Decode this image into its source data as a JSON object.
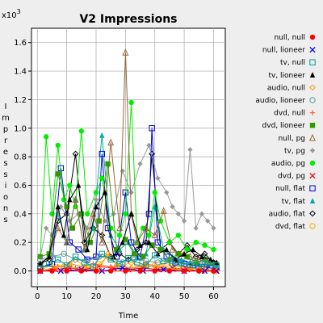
{
  "chart_data": {
    "type": "line",
    "title": "V2 Impressions",
    "xlabel": "Time",
    "ylabel": "Impressions",
    "y_multiplier": "x10",
    "y_multiplier_exp": "3",
    "xlim": [
      -2,
      64
    ],
    "ylim": [
      -0.11,
      1.7
    ],
    "x_ticks": [
      0,
      10,
      20,
      30,
      40,
      50,
      60
    ],
    "y_ticks": [
      0.0,
      0.2,
      0.4,
      0.6,
      0.8,
      1.0,
      1.2,
      1.4,
      1.6
    ],
    "y_tick_labels": [
      "0.0",
      "0.2",
      "0.4",
      "0.6",
      "0.8",
      "1.0",
      "1.2",
      "1.4",
      "1.6"
    ],
    "grid": true,
    "legend_position": "right",
    "series": [
      {
        "name": "null, null",
        "color": "#ff0000",
        "marker": "circle-filled",
        "x": [
          1,
          5,
          10,
          15,
          20,
          25,
          30,
          35,
          40,
          45,
          50,
          55,
          60
        ],
        "y": [
          0,
          0,
          0,
          0,
          0,
          0,
          0,
          0,
          0,
          0,
          0,
          0,
          0
        ]
      },
      {
        "name": "null, lioneer",
        "color": "#0000ff",
        "marker": "x",
        "x": [
          1,
          8,
          15,
          22,
          29,
          36,
          43,
          50,
          57,
          61
        ],
        "y": [
          0,
          0,
          0.01,
          0,
          0.02,
          0,
          0.01,
          0,
          0,
          0
        ]
      },
      {
        "name": "tv, null",
        "color": "#009999",
        "marker": "square",
        "x": [
          1,
          4,
          7,
          10,
          13,
          16,
          19,
          22,
          25,
          28,
          31,
          34,
          37,
          40,
          43,
          46,
          49,
          52,
          55,
          58,
          61
        ],
        "y": [
          0.02,
          0.05,
          0.08,
          0.04,
          0.1,
          0.06,
          0.03,
          0.12,
          0.08,
          0.05,
          0.09,
          0.06,
          0.04,
          0.11,
          0.07,
          0.05,
          0.06,
          0.04,
          0.03,
          0.05,
          0.04
        ]
      },
      {
        "name": "tv, lioneer",
        "color": "#000000",
        "marker": "triangle-filled",
        "x": [
          1,
          4,
          7,
          9,
          11,
          14,
          17,
          20,
          23,
          26,
          29,
          32,
          35,
          38,
          41,
          44,
          47,
          50,
          53,
          56,
          59,
          61
        ],
        "y": [
          0.05,
          0.1,
          0.45,
          0.25,
          0.5,
          0.6,
          0.15,
          0.45,
          0.55,
          0.1,
          0.2,
          0.4,
          0.18,
          0.2,
          0.12,
          0.15,
          0.08,
          0.12,
          0.15,
          0.1,
          0.08,
          0.06
        ]
      },
      {
        "name": "audio, null",
        "color": "#ff9900",
        "marker": "diamond",
        "x": [
          1,
          6,
          11,
          16,
          21,
          24,
          27,
          32,
          37,
          42,
          47,
          52,
          57,
          61
        ],
        "y": [
          0,
          0.02,
          0.05,
          0.03,
          0.01,
          0.12,
          0.04,
          0.02,
          0.05,
          0.03,
          0.01,
          0.02,
          0.01,
          0
        ]
      },
      {
        "name": "audio, lioneer",
        "color": "#669999",
        "marker": "circle",
        "x": [
          1,
          5,
          9,
          13,
          17,
          21,
          25,
          29,
          33,
          37,
          41,
          45,
          49,
          53,
          57,
          61
        ],
        "y": [
          0.08,
          0.1,
          0.12,
          0.08,
          0.07,
          0.1,
          0.09,
          0.06,
          0.08,
          0.07,
          0.06,
          0.08,
          0.05,
          0.07,
          0.06,
          0.05
        ]
      },
      {
        "name": "dvd, null",
        "color": "#ff6633",
        "marker": "plus",
        "x": [
          1,
          7,
          13,
          19,
          25,
          31,
          37,
          43,
          49,
          55,
          61
        ],
        "y": [
          0,
          0.03,
          0.02,
          0.05,
          0.03,
          0.01,
          0.04,
          0.02,
          0.01,
          0.02,
          0
        ]
      },
      {
        "name": "dvd, lioneer",
        "color": "#339900",
        "marker": "square-filled",
        "x": [
          1,
          4,
          7,
          10,
          12,
          15,
          18,
          21,
          24,
          27,
          30,
          33,
          36,
          39,
          42,
          45,
          48,
          51,
          54,
          57,
          60
        ],
        "y": [
          0.1,
          0.12,
          0.68,
          0.45,
          0.3,
          0.4,
          0.2,
          0.35,
          0.75,
          0.15,
          0.22,
          0.12,
          0.1,
          0.18,
          0.15,
          0.08,
          0.12,
          0.1,
          0.06,
          0.08,
          0.05
        ]
      },
      {
        "name": "null, pg",
        "color": "#996633",
        "marker": "triangle",
        "x": [
          1,
          4,
          7,
          10,
          13,
          16,
          19,
          22,
          25,
          28,
          30,
          32,
          34,
          37,
          40,
          43,
          46,
          49,
          52,
          55,
          58,
          61
        ],
        "y": [
          0.05,
          0.1,
          0.3,
          0.2,
          0.5,
          0.15,
          0.4,
          0.2,
          0.9,
          0.3,
          1.53,
          0.4,
          0.2,
          0.3,
          0.25,
          0.42,
          0.15,
          0.12,
          0.1,
          0.08,
          0.06,
          0.05
        ]
      },
      {
        "name": "tv, pg",
        "color": "#999999",
        "marker": "diamond-filled",
        "x": [
          1,
          3,
          5,
          8,
          11,
          14,
          17,
          20,
          23,
          26,
          29,
          32,
          35,
          38,
          41,
          44,
          46,
          48,
          50,
          52,
          54,
          56,
          58,
          60
        ],
        "y": [
          0.1,
          0.3,
          0.25,
          0.45,
          0.35,
          0.4,
          0.3,
          0.5,
          0.35,
          0.4,
          0.7,
          0.55,
          0.75,
          0.88,
          0.65,
          0.55,
          0.45,
          0.4,
          0.35,
          0.85,
          0.3,
          0.4,
          0.35,
          0.3
        ]
      },
      {
        "name": "audio, pg",
        "color": "#00ee00",
        "marker": "circle-filled",
        "x": [
          1,
          3,
          5,
          7,
          9,
          11,
          13,
          15,
          17,
          20,
          22,
          25,
          28,
          30,
          32,
          34,
          36,
          38,
          40,
          42,
          45,
          48,
          51,
          54,
          57,
          60
        ],
        "y": [
          0.1,
          0.94,
          0.4,
          0.88,
          0.5,
          0.6,
          0.45,
          0.98,
          0.4,
          0.55,
          0.65,
          0.3,
          0.25,
          0.4,
          1.18,
          0.2,
          0.3,
          0.25,
          0.55,
          0.35,
          0.2,
          0.25,
          0.15,
          0.2,
          0.18,
          0.15
        ]
      },
      {
        "name": "dvd, pg",
        "color": "#ff0000",
        "marker": "x",
        "x": [
          1,
          6,
          11,
          16,
          21,
          26,
          31,
          36,
          41,
          46,
          51,
          56,
          61
        ],
        "y": [
          0,
          0.01,
          0.02,
          0.01,
          0.03,
          0.02,
          0.01,
          0.02,
          0.01,
          0.02,
          0.01,
          0,
          0
        ]
      },
      {
        "name": "null, flat",
        "color": "#0000cc",
        "marker": "square",
        "x": [
          1,
          5,
          8,
          11,
          14,
          17,
          20,
          22,
          24,
          27,
          30,
          32,
          35,
          38,
          39,
          41,
          44,
          47,
          50,
          53,
          56,
          59,
          61
        ],
        "y": [
          0.02,
          0.05,
          0.72,
          0.2,
          0.15,
          0.08,
          0.1,
          0.82,
          0.3,
          0.1,
          0.55,
          0.2,
          0.1,
          0.4,
          1.0,
          0.2,
          0.1,
          0.06,
          0.05,
          0.04,
          0.03,
          0.02,
          0.02
        ]
      },
      {
        "name": "tv, flat",
        "color": "#00aaaa",
        "marker": "triangle-filled",
        "x": [
          1,
          4,
          7,
          10,
          13,
          16,
          19,
          22,
          25,
          28,
          31,
          34,
          37,
          40,
          43,
          46,
          49,
          52,
          55,
          58,
          61
        ],
        "y": [
          0.05,
          0.1,
          0.4,
          0.2,
          0.5,
          0.15,
          0.3,
          0.95,
          0.25,
          0.15,
          0.2,
          0.1,
          0.12,
          0.45,
          0.15,
          0.1,
          0.08,
          0.06,
          0.05,
          0.04,
          0.03
        ]
      },
      {
        "name": "audio, flat",
        "color": "#000000",
        "marker": "diamond",
        "x": [
          1,
          4,
          7,
          10,
          13,
          16,
          19,
          22,
          25,
          28,
          31,
          34,
          37,
          39,
          42,
          45,
          48,
          51,
          54,
          57,
          60
        ],
        "y": [
          0.05,
          0.08,
          0.35,
          0.4,
          0.82,
          0.2,
          0.3,
          0.25,
          0.1,
          0.12,
          0.08,
          0.15,
          0.2,
          0.82,
          0.15,
          0.2,
          0.12,
          0.18,
          0.1,
          0.12,
          0.06
        ]
      },
      {
        "name": "dvd, flat",
        "color": "#ffaa00",
        "marker": "circle",
        "x": [
          1,
          5,
          9,
          13,
          17,
          21,
          24,
          28,
          32,
          36,
          40,
          44,
          48,
          52,
          56,
          60
        ],
        "y": [
          0,
          0.05,
          0.03,
          0.08,
          0.02,
          0.05,
          0.1,
          0.03,
          0.06,
          0.02,
          0.04,
          0.05,
          0.03,
          0.02,
          0.01,
          0
        ]
      }
    ]
  }
}
